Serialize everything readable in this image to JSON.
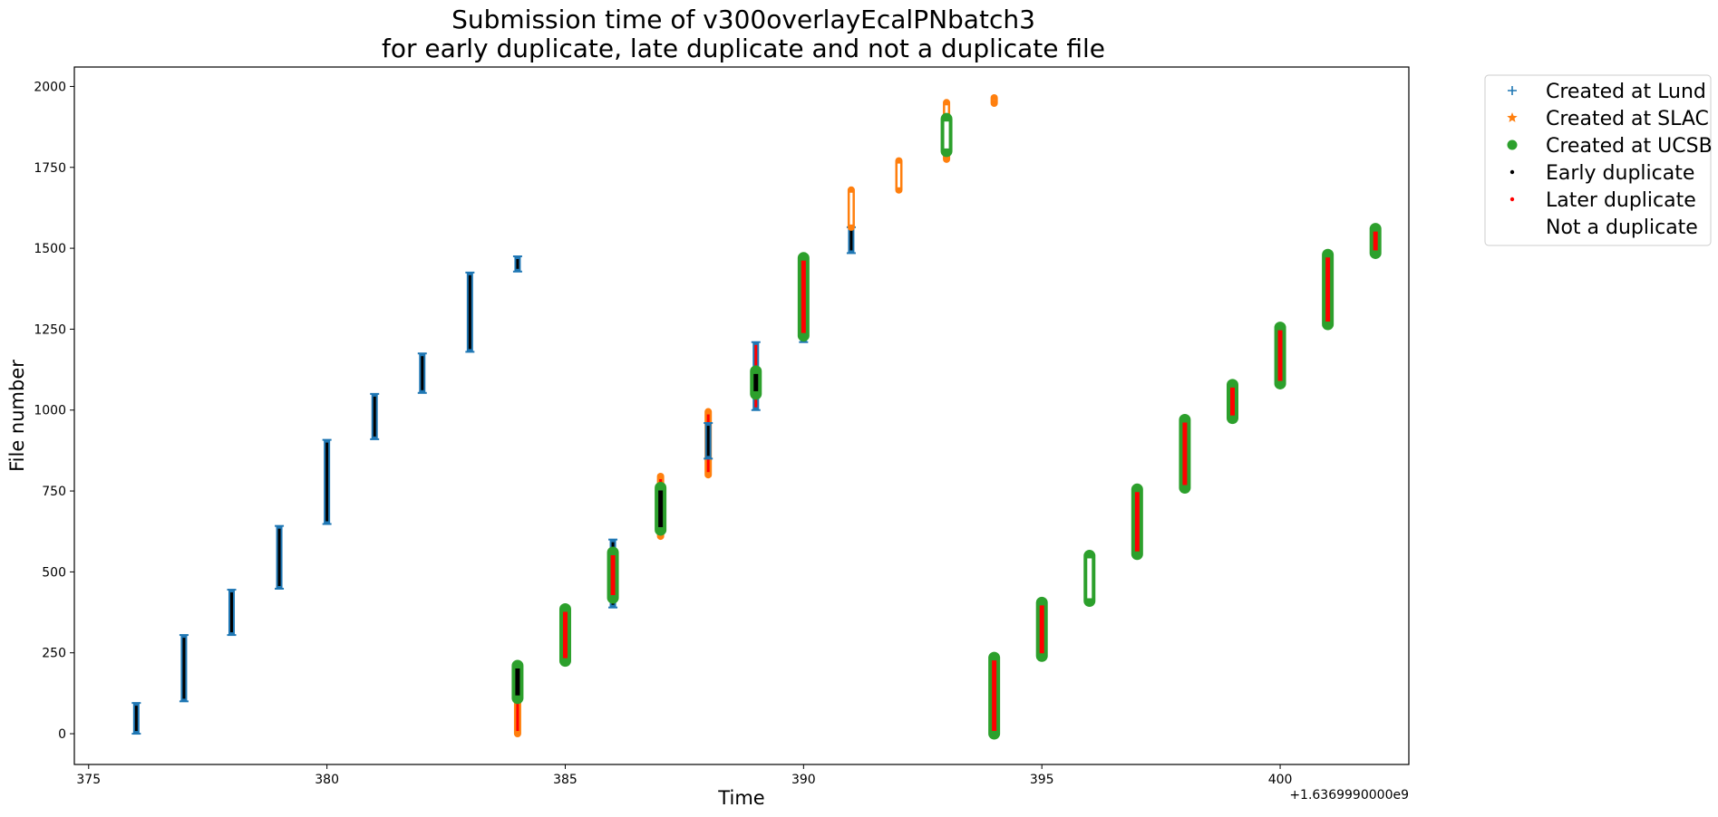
{
  "chart_data": {
    "type": "scatter",
    "title_line1": "Submission time of v300overlayEcalPNbatch3",
    "title_line2": "for early duplicate, late duplicate and not a duplicate file",
    "xlabel": "Time",
    "ylabel": "File number",
    "x_offset_label": "+1.6369990000e9",
    "xlim": [
      374.7,
      402.7
    ],
    "ylim": [
      -95,
      2060
    ],
    "xticks": [
      375,
      380,
      385,
      390,
      395,
      400
    ],
    "yticks": [
      0,
      250,
      500,
      750,
      1000,
      1250,
      1500,
      1750,
      2000
    ],
    "grid": false,
    "legend_position": "outside-top-right",
    "legend": [
      {
        "label": "Created at Lund",
        "marker": "plus",
        "color": "#1f77b4"
      },
      {
        "label": "Created at SLAC",
        "marker": "star",
        "color": "#ff7f0e"
      },
      {
        "label": "Created at UCSB",
        "marker": "circle",
        "color": "#2ca02c"
      },
      {
        "label": "Early duplicate",
        "marker": "dot",
        "color": "#000000"
      },
      {
        "label": "Later duplicate",
        "marker": "dot",
        "color": "#ff0000"
      },
      {
        "label": "Not a duplicate",
        "marker": "dot",
        "color": "#ffffff"
      }
    ],
    "groups": [
      {
        "x": 376,
        "ymin": 0,
        "ymax": 95,
        "site": "Lund",
        "dup": "early"
      },
      {
        "x": 377,
        "ymin": 100,
        "ymax": 305,
        "site": "Lund",
        "dup": "early"
      },
      {
        "x": 378,
        "ymin": 305,
        "ymax": 445,
        "site": "Lund",
        "dup": "early"
      },
      {
        "x": 379,
        "ymin": 448,
        "ymax": 642,
        "site": "Lund",
        "dup": "early"
      },
      {
        "x": 380,
        "ymin": 648,
        "ymax": 908,
        "site": "Lund",
        "dup": "early"
      },
      {
        "x": 381,
        "ymin": 910,
        "ymax": 1050,
        "site": "Lund",
        "dup": "early"
      },
      {
        "x": 382,
        "ymin": 1053,
        "ymax": 1175,
        "site": "Lund",
        "dup": "early"
      },
      {
        "x": 383,
        "ymin": 1180,
        "ymax": 1425,
        "site": "Lund",
        "dup": "early"
      },
      {
        "x": 384,
        "ymin": 1428,
        "ymax": 1475,
        "site": "Lund",
        "dup": "early"
      },
      {
        "x": 384,
        "ymin": 0,
        "ymax": 110,
        "site": "SLAC",
        "dup": "later"
      },
      {
        "x": 384,
        "ymin": 110,
        "ymax": 210,
        "site": "UCSB",
        "dup": "early"
      },
      {
        "x": 385,
        "ymin": 225,
        "ymax": 385,
        "site": "SLAC",
        "dup": "later"
      },
      {
        "x": 385,
        "ymin": 225,
        "ymax": 385,
        "site": "UCSB",
        "dup": "later"
      },
      {
        "x": 386,
        "ymin": 390,
        "ymax": 600,
        "site": "Lund",
        "dup": "early"
      },
      {
        "x": 386,
        "ymin": 420,
        "ymax": 560,
        "site": "UCSB",
        "dup": "later"
      },
      {
        "x": 387,
        "ymin": 610,
        "ymax": 795,
        "site": "SLAC",
        "dup": "later"
      },
      {
        "x": 387,
        "ymin": 630,
        "ymax": 760,
        "site": "UCSB",
        "dup": "early"
      },
      {
        "x": 388,
        "ymin": 800,
        "ymax": 995,
        "site": "SLAC",
        "dup": "later"
      },
      {
        "x": 388,
        "ymin": 850,
        "ymax": 960,
        "site": "Lund",
        "dup": "early"
      },
      {
        "x": 389,
        "ymin": 1000,
        "ymax": 1210,
        "site": "Lund",
        "dup": "later"
      },
      {
        "x": 389,
        "ymin": 1050,
        "ymax": 1120,
        "site": "UCSB",
        "dup": "early"
      },
      {
        "x": 390,
        "ymin": 1210,
        "ymax": 1475,
        "site": "Lund",
        "dup": "early"
      },
      {
        "x": 390,
        "ymin": 1230,
        "ymax": 1470,
        "site": "UCSB",
        "dup": "later"
      },
      {
        "x": 391,
        "ymin": 1485,
        "ymax": 1565,
        "site": "Lund",
        "dup": "early"
      },
      {
        "x": 391,
        "ymin": 1565,
        "ymax": 1680,
        "site": "SLAC",
        "dup": "none"
      },
      {
        "x": 392,
        "ymin": 1680,
        "ymax": 1770,
        "site": "SLAC",
        "dup": "none"
      },
      {
        "x": 393,
        "ymin": 1775,
        "ymax": 1950,
        "site": "SLAC",
        "dup": "none"
      },
      {
        "x": 393,
        "ymin": 1800,
        "ymax": 1900,
        "site": "UCSB",
        "dup": "none"
      },
      {
        "x": 394,
        "ymin": 1948,
        "ymax": 1965,
        "site": "SLAC",
        "dup": "none"
      },
      {
        "x": 394,
        "ymin": 0,
        "ymax": 235,
        "site": "UCSB",
        "dup": "later"
      },
      {
        "x": 395,
        "ymin": 240,
        "ymax": 405,
        "site": "UCSB",
        "dup": "later"
      },
      {
        "x": 396,
        "ymin": 410,
        "ymax": 550,
        "site": "UCSB",
        "dup": "none"
      },
      {
        "x": 397,
        "ymin": 555,
        "ymax": 755,
        "site": "UCSB",
        "dup": "later"
      },
      {
        "x": 398,
        "ymin": 760,
        "ymax": 970,
        "site": "UCSB",
        "dup": "later"
      },
      {
        "x": 399,
        "ymin": 975,
        "ymax": 1078,
        "site": "UCSB",
        "dup": "later"
      },
      {
        "x": 400,
        "ymin": 1082,
        "ymax": 1255,
        "site": "UCSB",
        "dup": "later"
      },
      {
        "x": 401,
        "ymin": 1265,
        "ymax": 1480,
        "site": "UCSB",
        "dup": "later"
      },
      {
        "x": 402,
        "ymin": 1485,
        "ymax": 1560,
        "site": "UCSB",
        "dup": "later"
      }
    ]
  }
}
